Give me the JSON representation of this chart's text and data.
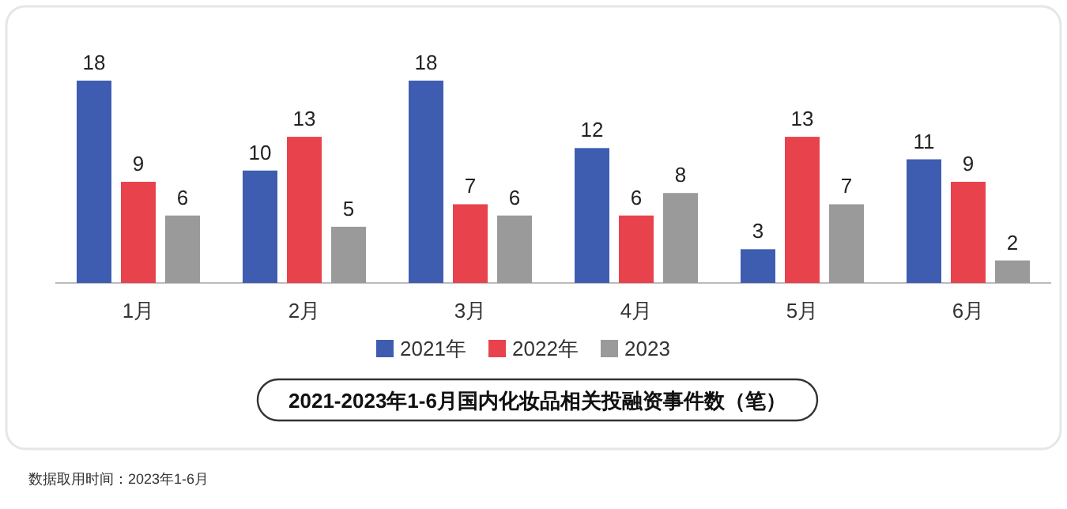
{
  "chart_data": {
    "type": "bar",
    "title": "2021-2023年1-6月国内化妆品相关投融资事件数（笔）",
    "categories": [
      "1月",
      "2月",
      "3月",
      "4月",
      "5月",
      "6月"
    ],
    "series": [
      {
        "name": "2021年",
        "color": "#3f5db0",
        "values": [
          18,
          10,
          18,
          12,
          3,
          11
        ]
      },
      {
        "name": "2022年",
        "color": "#e8434d",
        "values": [
          9,
          13,
          7,
          6,
          13,
          9
        ]
      },
      {
        "name": "2023",
        "color": "#9a9a9a",
        "values": [
          6,
          5,
          6,
          8,
          7,
          2
        ]
      }
    ],
    "data_labels": true,
    "legend": "bottom",
    "annotations": [
      "数据取用时间：2023年1-6月"
    ]
  }
}
